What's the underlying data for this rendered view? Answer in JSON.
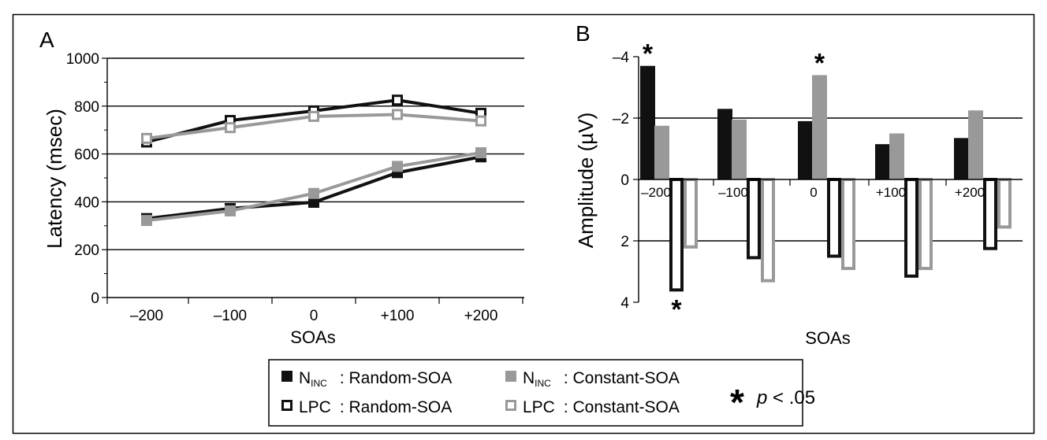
{
  "figure": {
    "panel_a_label": "A",
    "panel_b_label": "B"
  },
  "legend": {
    "entries": [
      {
        "prefix": "N",
        "sub": "INC",
        "condition": "Random-SOA",
        "marker": "filled-black"
      },
      {
        "prefix": "N",
        "sub": "INC",
        "condition": "Constant-SOA",
        "marker": "filled-gray"
      },
      {
        "prefix": "LPC",
        "sub": "",
        "condition": "Random-SOA",
        "marker": "open-black"
      },
      {
        "prefix": "LPC",
        "sub": "",
        "condition": "Constant-SOA",
        "marker": "open-gray"
      }
    ],
    "sep": " : ",
    "sig_star": "*",
    "sig_p": "p",
    "sig_rest": " < .05"
  },
  "colors": {
    "black": "#111111",
    "gray": "#999999"
  },
  "chart_data": [
    {
      "type": "line",
      "panel": "A",
      "xlabel": "SOAs",
      "ylabel": "Latency (msec)",
      "categories": [
        "–200",
        "–100",
        "0",
        "+100",
        "+200"
      ],
      "ylim": [
        0,
        1000
      ],
      "yticks": [
        "0",
        "200",
        "400",
        "600",
        "800",
        "1000"
      ],
      "grid": true,
      "series": [
        {
          "name": "LPC : Random-SOA",
          "values": [
            650,
            740,
            780,
            825,
            770
          ],
          "color": "black",
          "filled": false
        },
        {
          "name": "LPC : Constant-SOA",
          "values": [
            665,
            710,
            757,
            765,
            738
          ],
          "color": "gray",
          "filled": false
        },
        {
          "name": "N INC : Random-SOA",
          "values": [
            330,
            372,
            398,
            522,
            588
          ],
          "color": "black",
          "filled": true
        },
        {
          "name": "N INC : Constant-SOA",
          "values": [
            322,
            362,
            435,
            548,
            605
          ],
          "color": "gray",
          "filled": true
        }
      ]
    },
    {
      "type": "bar",
      "panel": "B",
      "xlabel": "SOAs",
      "ylabel": "Amplitude (µV)",
      "categories": [
        "–200",
        "–100",
        "0",
        "+100",
        "+200"
      ],
      "ylim": [
        4,
        -4
      ],
      "yticks": [
        "–4",
        "–2",
        "0",
        "2",
        "4"
      ],
      "grid": true,
      "series": [
        {
          "name": "N INC : Random-SOA",
          "values": [
            -3.7,
            -2.3,
            -1.9,
            -1.15,
            -1.35
          ],
          "color": "black",
          "filled": true
        },
        {
          "name": "N INC : Constant-SOA",
          "values": [
            -1.75,
            -1.95,
            -3.4,
            -1.5,
            -2.25
          ],
          "color": "gray",
          "filled": true
        },
        {
          "name": "LPC : Random-SOA",
          "values": [
            3.65,
            2.6,
            2.55,
            3.2,
            2.3
          ],
          "color": "black",
          "filled": false
        },
        {
          "name": "LPC : Constant-SOA",
          "values": [
            2.25,
            3.35,
            2.95,
            2.95,
            1.6
          ],
          "color": "gray",
          "filled": false
        }
      ],
      "annotations": [
        {
          "text": "*",
          "category": "–200",
          "series": "N INC : Random-SOA"
        },
        {
          "text": "*",
          "category": "0",
          "series": "N INC : Constant-SOA"
        },
        {
          "text": "*",
          "category": "–200",
          "series": "LPC : Random-SOA"
        }
      ]
    }
  ]
}
